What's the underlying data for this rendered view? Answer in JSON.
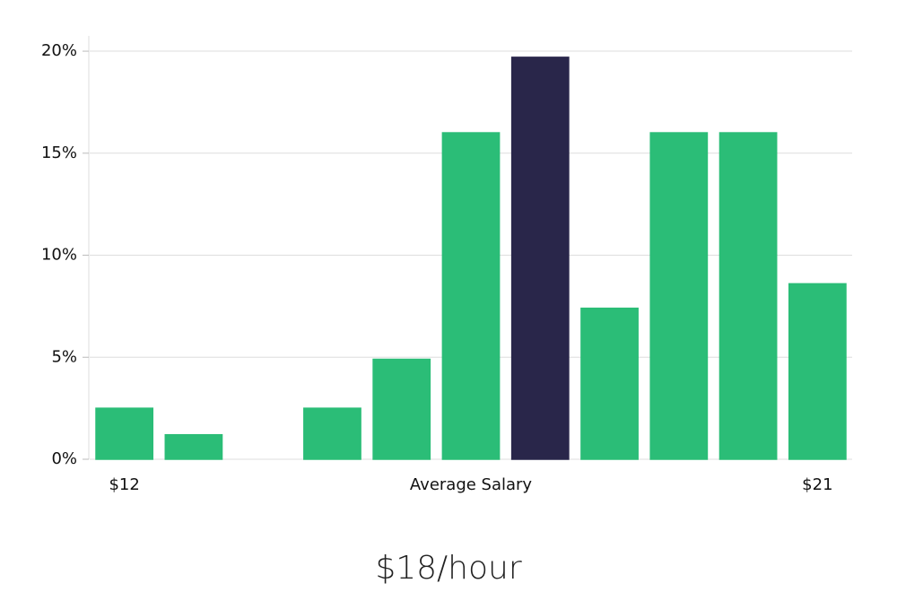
{
  "chart_data": {
    "type": "bar",
    "title": "$18/hour",
    "xlabel": "Average Salary",
    "categories": [
      "$12",
      null,
      null,
      null,
      null,
      null,
      null,
      null,
      null,
      null,
      "$21"
    ],
    "values": [
      2.5,
      1.2,
      0,
      2.5,
      4.9,
      16,
      19.7,
      7.4,
      16,
      16,
      8.6
    ],
    "colors": [
      "#2bbd77",
      "#2bbd77",
      "#2bbd77",
      "#2bbd77",
      "#2bbd77",
      "#2bbd77",
      "#29264a",
      "#2bbd77",
      "#2bbd77",
      "#2bbd77",
      "#2bbd77"
    ],
    "ylim": [
      0,
      20.75
    ],
    "yticks": [
      {
        "value": 0,
        "label": "0%"
      },
      {
        "value": 5,
        "label": "5%"
      },
      {
        "value": 10,
        "label": "10%"
      },
      {
        "value": 15,
        "label": "15%"
      },
      {
        "value": 20,
        "label": "20%"
      }
    ],
    "grid": true
  }
}
